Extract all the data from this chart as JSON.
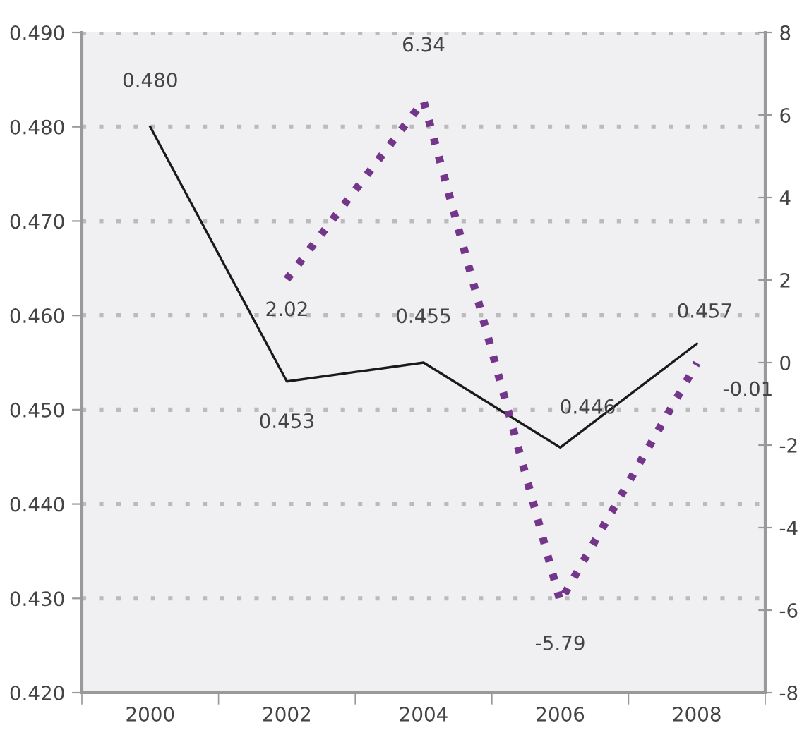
{
  "chart_data": {
    "type": "line",
    "categories": [
      "2000",
      "2002",
      "2004",
      "2006",
      "2008"
    ],
    "series": [
      {
        "color": "#1a1a1a",
        "values": [
          0.48,
          0.453,
          0.455,
          0.446,
          0.457
        ],
        "value_labels": [
          "0.480",
          "0.453",
          "0.455",
          "0.446",
          "0.457"
        ],
        "line_style": "solid"
      },
      {
        "color": "#74368a",
        "axis": "y2",
        "values": [
          null,
          2.02,
          6.34,
          -5.79,
          -0.01
        ],
        "value_labels": [
          null,
          "2.02",
          "6.34",
          "-5.79",
          "-0.01"
        ],
        "line_style": "dotted"
      }
    ],
    "ylim": [
      0.42,
      0.49
    ],
    "yticks": [
      {
        "value": 0.42,
        "label": "0.420"
      },
      {
        "value": 0.43,
        "label": "0.430"
      },
      {
        "value": 0.44,
        "label": "0.440"
      },
      {
        "value": 0.45,
        "label": "0.450"
      },
      {
        "value": 0.46,
        "label": "0.460"
      },
      {
        "value": 0.47,
        "label": "0.470"
      },
      {
        "value": 0.48,
        "label": "0.480"
      },
      {
        "value": 0.49,
        "label": "0.490"
      }
    ],
    "y2lim": [
      -8,
      8
    ],
    "y2ticks": [
      -8,
      -6,
      -4,
      -2,
      0,
      2,
      4,
      6,
      8
    ],
    "grid": "y"
  }
}
